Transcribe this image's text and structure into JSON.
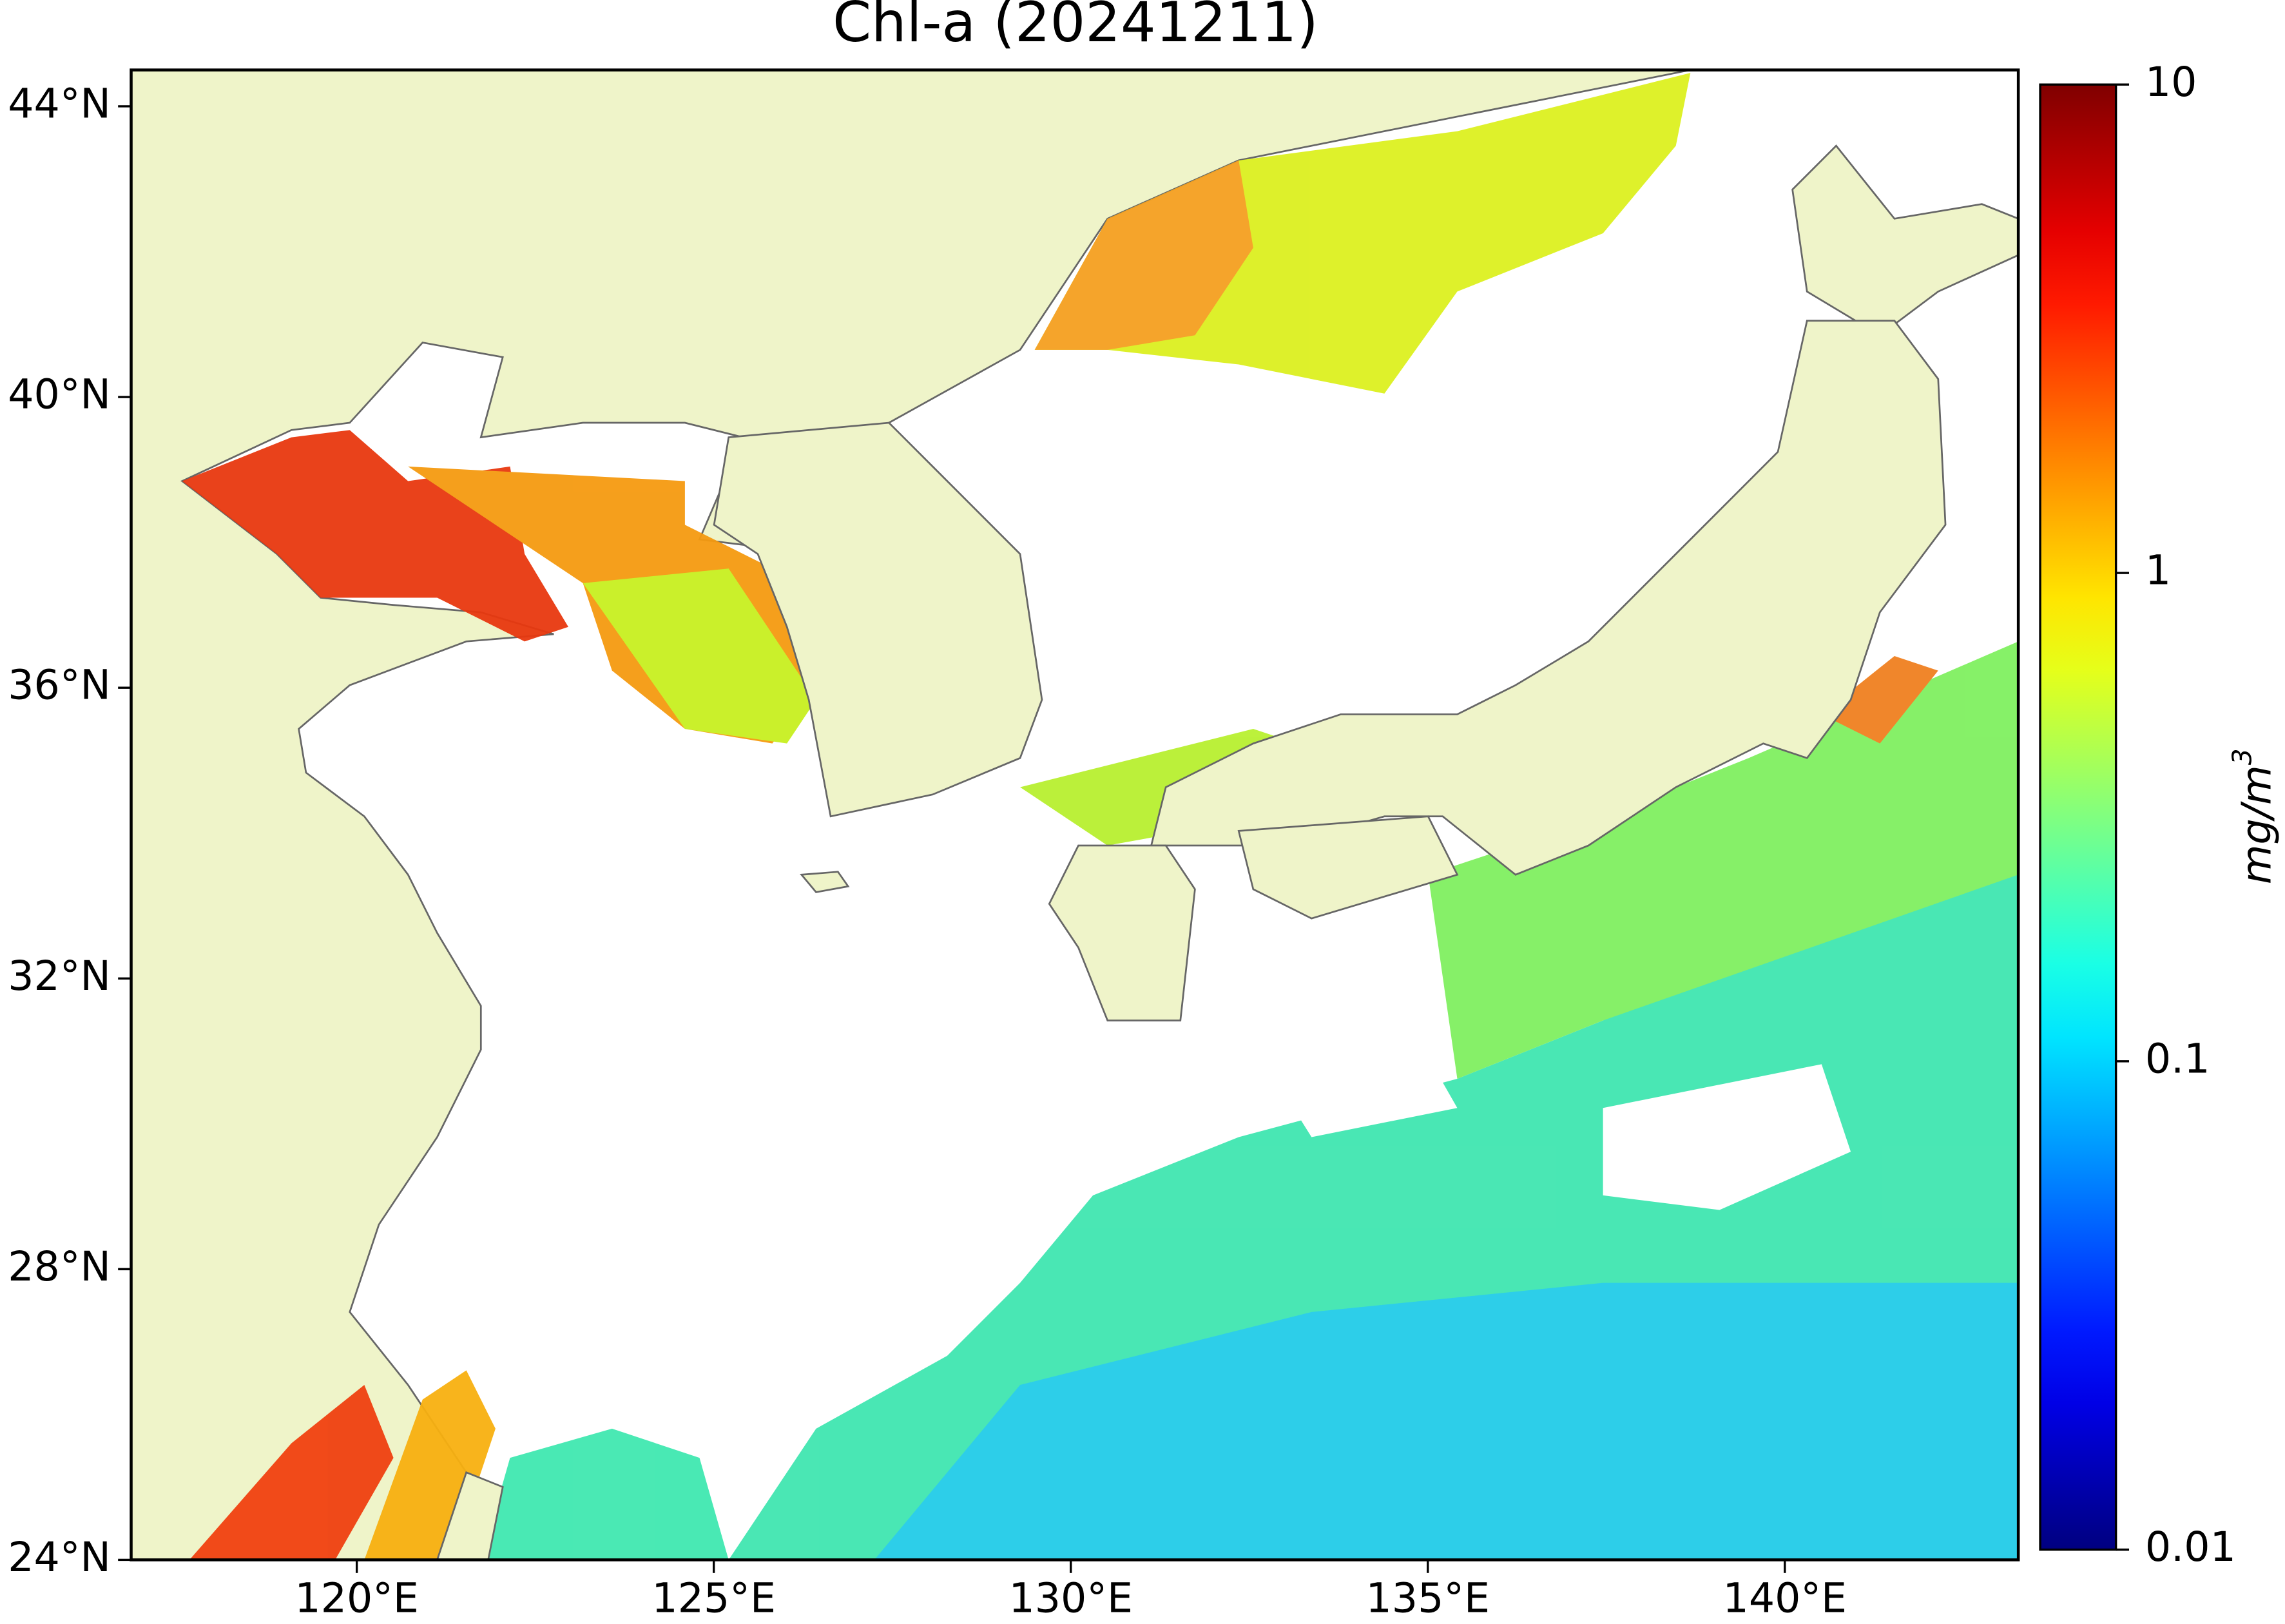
{
  "chart_data": {
    "type": "map",
    "title": "Chl-a (20241211)",
    "xlim": [
      116.84,
      143.27
    ],
    "ylim": [
      24,
      44.5
    ],
    "xticks": [
      {
        "value": 120,
        "label": "120°E"
      },
      {
        "value": 125,
        "label": "125°E"
      },
      {
        "value": 130,
        "label": "130°E"
      },
      {
        "value": 135,
        "label": "135°E"
      },
      {
        "value": 140,
        "label": "140°E"
      }
    ],
    "yticks": [
      {
        "value": 24,
        "label": "24°N"
      },
      {
        "value": 28,
        "label": "28°N"
      },
      {
        "value": 32,
        "label": "32°N"
      },
      {
        "value": 36,
        "label": "36°N"
      },
      {
        "value": 40,
        "label": "40°N"
      },
      {
        "value": 44,
        "label": "44°N"
      }
    ],
    "land_color": "#eff4c9",
    "colorbar": {
      "label": "mg/m",
      "label_superscript": "3",
      "scale": "log",
      "colormap": "jet",
      "lim": [
        0.01,
        10
      ],
      "ticks": [
        0.01,
        0.1,
        1,
        10
      ]
    }
  }
}
